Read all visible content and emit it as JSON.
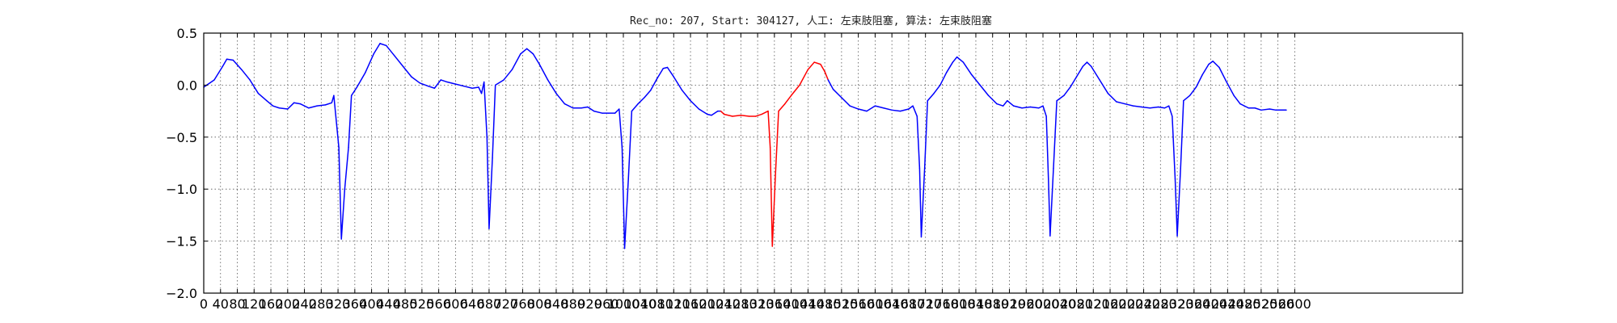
{
  "chart_data": {
    "type": "line",
    "title": "Rec_no: 207, Start: 304127, 人工: 左束肢阻塞, 算法: 左束肢阻塞",
    "xlabel": "",
    "ylabel": "",
    "xlim": [
      0,
      3000
    ],
    "ylim": [
      -2.0,
      0.5
    ],
    "grid": true,
    "x_step": 40,
    "x_tick_labels": [
      "0",
      "40",
      "80",
      "120",
      "160",
      "200",
      "240",
      "280",
      "320",
      "360",
      "400",
      "440",
      "480",
      "520",
      "560",
      "600",
      "640",
      "680",
      "720",
      "760",
      "800",
      "840",
      "880",
      "920",
      "960",
      "1000",
      "1040",
      "1080",
      "1120",
      "1160",
      "1200",
      "1240",
      "1280",
      "1320",
      "1360",
      "1400",
      "1440",
      "1480",
      "1520",
      "1560",
      "1600",
      "1640",
      "1680",
      "1720",
      "1760",
      "1800",
      "1840",
      "1880",
      "1920",
      "1960",
      "2000",
      "2040",
      "2080",
      "2120",
      "2160",
      "2200",
      "2240",
      "2280",
      "2320",
      "2360",
      "2400",
      "2440",
      "2480",
      "2520",
      "2560",
      "2600"
    ],
    "y_ticks": [
      0.5,
      0.0,
      -0.5,
      -1.0,
      -1.5,
      -2.0
    ],
    "y_tick_labels": [
      "0.5",
      "0.0",
      "−0.5",
      "−1.0",
      "−1.5",
      "−2.0"
    ],
    "series": [
      {
        "color": "#0000ff",
        "points": [
          [
            0,
            -0.02
          ],
          [
            25,
            0.05
          ],
          [
            45,
            0.18
          ],
          [
            55,
            0.25
          ],
          [
            70,
            0.24
          ],
          [
            90,
            0.15
          ],
          [
            110,
            0.05
          ],
          [
            130,
            -0.08
          ],
          [
            150,
            -0.15
          ],
          [
            165,
            -0.2
          ],
          [
            180,
            -0.22
          ],
          [
            200,
            -0.23
          ],
          [
            215,
            -0.17
          ],
          [
            230,
            -0.18
          ],
          [
            250,
            -0.22
          ],
          [
            270,
            -0.2
          ],
          [
            290,
            -0.19
          ],
          [
            305,
            -0.17
          ],
          [
            310,
            -0.1
          ],
          [
            322,
            -0.6
          ],
          [
            328,
            -1.48
          ],
          [
            336,
            -1.0
          ],
          [
            345,
            -0.6
          ],
          [
            352,
            -0.1
          ],
          [
            365,
            -0.02
          ],
          [
            385,
            0.12
          ],
          [
            405,
            0.3
          ],
          [
            420,
            0.4
          ],
          [
            435,
            0.38
          ],
          [
            455,
            0.28
          ],
          [
            475,
            0.18
          ],
          [
            495,
            0.08
          ],
          [
            515,
            0.02
          ],
          [
            535,
            -0.01
          ],
          [
            550,
            -0.03
          ],
          [
            565,
            0.05
          ],
          [
            580,
            0.03
          ],
          [
            600,
            0.01
          ],
          [
            620,
            -0.01
          ],
          [
            640,
            -0.03
          ],
          [
            655,
            -0.02
          ],
          [
            662,
            -0.08
          ],
          [
            668,
            0.03
          ],
          [
            675,
            -0.5
          ],
          [
            680,
            -1.38
          ],
          [
            688,
            -0.7
          ],
          [
            695,
            0.0
          ],
          [
            715,
            0.05
          ],
          [
            735,
            0.15
          ],
          [
            755,
            0.3
          ],
          [
            770,
            0.35
          ],
          [
            785,
            0.3
          ],
          [
            800,
            0.2
          ],
          [
            820,
            0.05
          ],
          [
            840,
            -0.08
          ],
          [
            860,
            -0.18
          ],
          [
            880,
            -0.22
          ],
          [
            900,
            -0.22
          ],
          [
            915,
            -0.21
          ],
          [
            930,
            -0.25
          ],
          [
            950,
            -0.27
          ],
          [
            965,
            -0.27
          ],
          [
            980,
            -0.27
          ],
          [
            990,
            -0.23
          ],
          [
            997,
            -0.6
          ],
          [
            1003,
            -1.57
          ],
          [
            1012,
            -0.9
          ],
          [
            1020,
            -0.25
          ],
          [
            1035,
            -0.18
          ],
          [
            1050,
            -0.12
          ],
          [
            1065,
            -0.05
          ],
          [
            1080,
            0.06
          ],
          [
            1095,
            0.16
          ],
          [
            1105,
            0.17
          ],
          [
            1120,
            0.08
          ],
          [
            1140,
            -0.05
          ],
          [
            1160,
            -0.15
          ],
          [
            1180,
            -0.23
          ],
          [
            1200,
            -0.28
          ],
          [
            1210,
            -0.29
          ],
          [
            1225,
            -0.25
          ],
          [
            1232,
            -0.25
          ]
        ]
      },
      {
        "color": "#ff0000",
        "points": [
          [
            1232,
            -0.25
          ],
          [
            1240,
            -0.28
          ],
          [
            1260,
            -0.3
          ],
          [
            1280,
            -0.29
          ],
          [
            1300,
            -0.3
          ],
          [
            1315,
            -0.3
          ],
          [
            1330,
            -0.28
          ],
          [
            1345,
            -0.25
          ],
          [
            1350,
            -0.6
          ],
          [
            1355,
            -1.55
          ],
          [
            1362,
            -0.9
          ],
          [
            1370,
            -0.25
          ],
          [
            1385,
            -0.18
          ],
          [
            1400,
            -0.1
          ],
          [
            1420,
            0.0
          ],
          [
            1440,
            0.15
          ],
          [
            1455,
            0.22
          ],
          [
            1470,
            0.2
          ],
          [
            1480,
            0.13
          ],
          [
            1488,
            0.05
          ]
        ]
      },
      {
        "color": "#0000ff",
        "points": [
          [
            1488,
            0.05
          ],
          [
            1500,
            -0.04
          ],
          [
            1520,
            -0.12
          ],
          [
            1540,
            -0.2
          ],
          [
            1560,
            -0.23
          ],
          [
            1580,
            -0.25
          ],
          [
            1600,
            -0.2
          ],
          [
            1620,
            -0.22
          ],
          [
            1640,
            -0.24
          ],
          [
            1660,
            -0.25
          ],
          [
            1680,
            -0.23
          ],
          [
            1690,
            -0.2
          ],
          [
            1700,
            -0.3
          ],
          [
            1706,
            -0.8
          ],
          [
            1710,
            -1.46
          ],
          [
            1718,
            -0.8
          ],
          [
            1725,
            -0.15
          ],
          [
            1740,
            -0.08
          ],
          [
            1755,
            0.0
          ],
          [
            1770,
            0.12
          ],
          [
            1785,
            0.22
          ],
          [
            1795,
            0.27
          ],
          [
            1810,
            0.22
          ],
          [
            1830,
            0.1
          ],
          [
            1850,
            0.0
          ],
          [
            1870,
            -0.1
          ],
          [
            1890,
            -0.18
          ],
          [
            1905,
            -0.2
          ],
          [
            1915,
            -0.15
          ],
          [
            1930,
            -0.2
          ],
          [
            1950,
            -0.22
          ],
          [
            1970,
            -0.21
          ],
          [
            1990,
            -0.22
          ],
          [
            2000,
            -0.2
          ],
          [
            2008,
            -0.3
          ],
          [
            2013,
            -0.9
          ],
          [
            2017,
            -1.45
          ],
          [
            2025,
            -0.8
          ],
          [
            2033,
            -0.15
          ],
          [
            2050,
            -0.1
          ],
          [
            2065,
            -0.02
          ],
          [
            2080,
            0.08
          ],
          [
            2095,
            0.18
          ],
          [
            2105,
            0.22
          ],
          [
            2115,
            0.18
          ],
          [
            2135,
            0.05
          ],
          [
            2155,
            -0.08
          ],
          [
            2175,
            -0.16
          ],
          [
            2195,
            -0.18
          ],
          [
            2215,
            -0.2
          ],
          [
            2235,
            -0.21
          ],
          [
            2255,
            -0.22
          ],
          [
            2275,
            -0.21
          ],
          [
            2290,
            -0.22
          ],
          [
            2300,
            -0.2
          ],
          [
            2308,
            -0.3
          ],
          [
            2315,
            -0.9
          ],
          [
            2320,
            -1.45
          ],
          [
            2328,
            -0.8
          ],
          [
            2335,
            -0.15
          ],
          [
            2350,
            -0.1
          ],
          [
            2365,
            -0.02
          ],
          [
            2380,
            0.1
          ],
          [
            2395,
            0.2
          ],
          [
            2405,
            0.23
          ],
          [
            2420,
            0.17
          ],
          [
            2435,
            0.05
          ],
          [
            2455,
            -0.1
          ],
          [
            2470,
            -0.18
          ],
          [
            2490,
            -0.22
          ],
          [
            2505,
            -0.22
          ],
          [
            2520,
            -0.24
          ],
          [
            2540,
            -0.23
          ],
          [
            2555,
            -0.24
          ],
          [
            2580,
            -0.24
          ]
        ]
      }
    ]
  }
}
